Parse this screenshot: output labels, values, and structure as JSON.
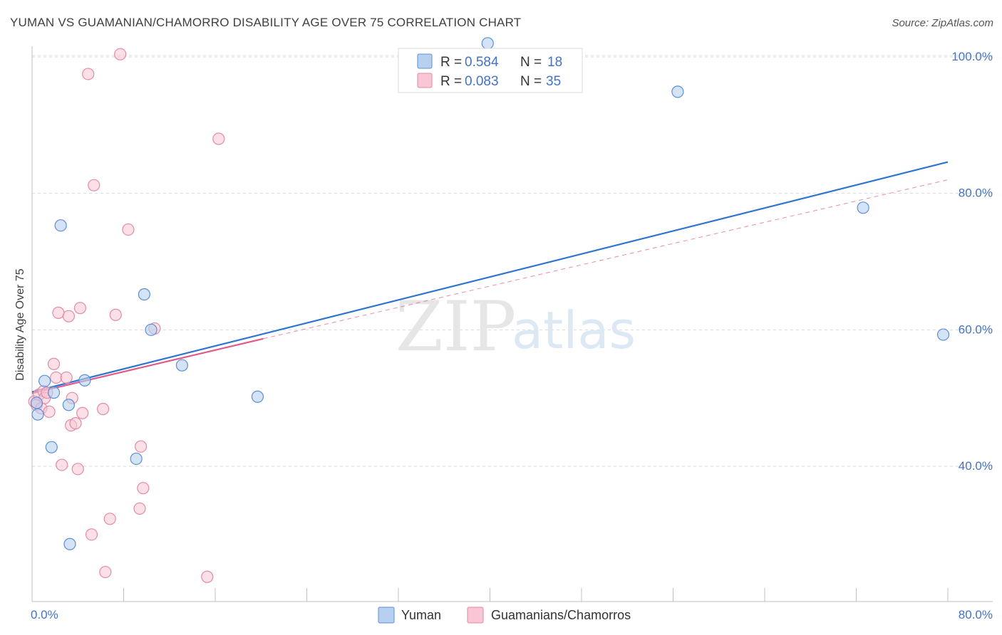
{
  "header": {
    "title": "YUMAN VS GUAMANIAN/CHAMORRO DISABILITY AGE OVER 75 CORRELATION CHART",
    "source": "Source: ZipAtlas.com"
  },
  "watermark": {
    "zip": "ZIP",
    "atlas": "atlas"
  },
  "colors": {
    "yuman_fill": "#b8d0f0",
    "yuman_stroke": "#5b8fd6",
    "yuman_line": "#2f75d0",
    "guam_fill": "#f8c6d4",
    "guam_stroke": "#e48aa6",
    "guam_line": "#e05a8a",
    "tick_text": "#4472c4",
    "grid": "#d9d9d9"
  },
  "legend": {
    "rows": [
      {
        "r_label": "R = ",
        "r_value": "0.584",
        "n_label": "N = ",
        "n_value": "18"
      },
      {
        "r_label": "R = ",
        "r_value": "0.083",
        "n_label": "N = ",
        "n_value": "35"
      }
    ]
  },
  "bottom_legend": [
    "Yuman",
    "Guamanians/Chamorros"
  ],
  "chart_data": {
    "type": "scatter",
    "title": "YUMAN VS GUAMANIAN/CHAMORRO DISABILITY AGE OVER 75 CORRELATION CHART",
    "xlabel": "",
    "ylabel": "Disability Age Over 75",
    "xlim": [
      0,
      80
    ],
    "ylim": [
      20,
      102
    ],
    "x_tick_labels": [
      "0.0%",
      "80.0%"
    ],
    "y_ticks": [
      40,
      60,
      80,
      100
    ],
    "y_tick_labels": [
      "40.0%",
      "60.0%",
      "80.0%",
      "100.0%"
    ],
    "grid": true,
    "legend_position": "top-center",
    "series": [
      {
        "name": "Yuman",
        "R": 0.584,
        "N": 18,
        "points": [
          [
            0.4,
            49.3
          ],
          [
            0.5,
            47.6
          ],
          [
            1.1,
            52.5
          ],
          [
            1.7,
            42.8
          ],
          [
            1.9,
            50.8
          ],
          [
            2.5,
            75.3
          ],
          [
            3.2,
            49.0
          ],
          [
            3.3,
            28.6
          ],
          [
            4.6,
            52.6
          ],
          [
            9.1,
            41.1
          ],
          [
            9.8,
            65.2
          ],
          [
            10.4,
            60.0
          ],
          [
            13.1,
            54.8
          ],
          [
            19.7,
            50.2
          ],
          [
            39.8,
            102.0
          ],
          [
            56.4,
            94.9
          ],
          [
            72.6,
            77.9
          ],
          [
            79.6,
            59.3
          ]
        ],
        "trend": {
          "x": [
            0,
            80
          ],
          "y": [
            50.9,
            84.6
          ]
        }
      },
      {
        "name": "Guamanians/Chamorros",
        "R": 0.083,
        "N": 35,
        "points": [
          [
            0.2,
            49.5
          ],
          [
            0.4,
            49.0
          ],
          [
            0.6,
            50.5
          ],
          [
            0.8,
            48.5
          ],
          [
            1.0,
            51.0
          ],
          [
            1.1,
            50.0
          ],
          [
            1.5,
            48.0
          ],
          [
            1.9,
            55.0
          ],
          [
            2.1,
            53.0
          ],
          [
            2.3,
            62.5
          ],
          [
            2.6,
            40.2
          ],
          [
            3.0,
            53.0
          ],
          [
            3.2,
            62.0
          ],
          [
            3.4,
            46.0
          ],
          [
            3.5,
            50.0
          ],
          [
            3.8,
            46.3
          ],
          [
            4.0,
            39.6
          ],
          [
            4.2,
            63.2
          ],
          [
            4.4,
            47.8
          ],
          [
            4.9,
            97.5
          ],
          [
            5.2,
            30.0
          ],
          [
            5.4,
            81.2
          ],
          [
            6.2,
            48.4
          ],
          [
            6.4,
            24.5
          ],
          [
            6.8,
            32.3
          ],
          [
            7.3,
            62.2
          ],
          [
            7.7,
            100.4
          ],
          [
            8.4,
            74.7
          ],
          [
            9.4,
            33.8
          ],
          [
            9.5,
            42.9
          ],
          [
            9.7,
            36.8
          ],
          [
            10.7,
            60.2
          ],
          [
            15.3,
            23.8
          ],
          [
            16.3,
            88.0
          ],
          [
            1.3,
            50.8
          ]
        ],
        "trend": {
          "x": [
            0,
            20.2
          ],
          "y": [
            50.7,
            58.7
          ]
        },
        "trend_extended": {
          "x": [
            20.2,
            80
          ],
          "y": [
            58.7,
            82.0
          ]
        }
      }
    ]
  }
}
